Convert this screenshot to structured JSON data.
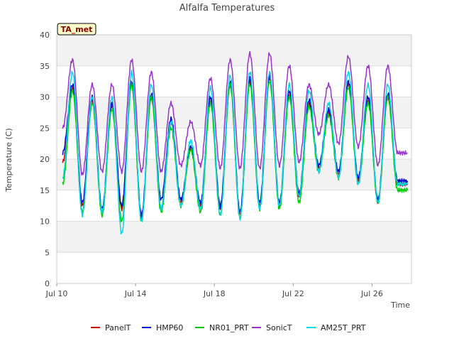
{
  "chart_data": {
    "type": "line",
    "title": "Alfalfa Temperatures",
    "xlabel": "Time",
    "ylabel": "Temperature (C)",
    "tag_label": "TA_met",
    "x_ticks": [
      "Jul 10",
      "Jul 14",
      "Jul 18",
      "Jul 22",
      "Jul 26"
    ],
    "x_tick_days": [
      10,
      14,
      18,
      22,
      26
    ],
    "xlim": [
      10,
      28
    ],
    "ylim": [
      0,
      40
    ],
    "y_ticks": [
      0,
      5,
      10,
      15,
      20,
      25,
      30,
      35,
      40
    ],
    "grid": "horizontal bands",
    "legend_position": "bottom",
    "day_x": [
      10.3,
      10.8,
      11.3,
      11.8,
      12.3,
      12.8,
      13.3,
      13.8,
      14.3,
      14.8,
      15.3,
      15.8,
      16.3,
      16.8,
      17.3,
      17.8,
      18.3,
      18.8,
      19.3,
      19.8,
      20.3,
      20.8,
      21.3,
      21.8,
      22.3,
      22.8,
      23.3,
      23.8,
      24.3,
      24.8,
      25.3,
      25.8,
      26.3,
      26.8,
      27.3,
      27.8
    ],
    "series": [
      {
        "name": "PanelT",
        "color": "#cc0000",
        "values": [
          19.5,
          31.5,
          12.5,
          29.5,
          11.5,
          28.5,
          12.0,
          32.0,
          10.5,
          30.0,
          12.0,
          26.0,
          13.0,
          21.5,
          12.5,
          29.5,
          12.0,
          32.0,
          11.0,
          32.5,
          12.5,
          33.0,
          12.5,
          30.5,
          14.0,
          29.0,
          18.5,
          27.5,
          17.5,
          32.0,
          16.5,
          29.5,
          13.0,
          30.0,
          16.0,
          16.0
        ]
      },
      {
        "name": "HMP60",
        "color": "#0000cc",
        "values": [
          21.0,
          32.0,
          13.0,
          30.0,
          12.0,
          29.0,
          12.5,
          32.5,
          11.0,
          30.5,
          13.5,
          26.5,
          13.5,
          22.0,
          13.0,
          30.0,
          12.5,
          32.5,
          11.5,
          33.0,
          13.0,
          33.5,
          13.0,
          31.0,
          14.5,
          29.5,
          19.0,
          28.0,
          18.0,
          32.5,
          17.0,
          30.0,
          13.5,
          30.5,
          16.5,
          16.5
        ]
      },
      {
        "name": "NR01_PRT",
        "color": "#00cc00",
        "values": [
          16.0,
          31.0,
          11.5,
          29.0,
          11.0,
          28.0,
          10.0,
          32.0,
          10.0,
          30.0,
          11.5,
          25.0,
          12.5,
          21.5,
          11.5,
          29.0,
          11.0,
          32.0,
          10.5,
          32.0,
          12.0,
          32.5,
          12.0,
          30.0,
          13.0,
          28.5,
          18.0,
          27.0,
          17.0,
          31.5,
          16.0,
          29.0,
          13.0,
          30.0,
          15.0,
          15.0
        ]
      },
      {
        "name": "SonicT",
        "color": "#9933cc",
        "values": [
          25.0,
          36.0,
          17.5,
          32.0,
          18.0,
          32.0,
          18.0,
          36.0,
          18.0,
          34.0,
          18.0,
          29.0,
          19.0,
          26.0,
          19.0,
          33.0,
          18.5,
          36.0,
          18.5,
          37.0,
          18.5,
          37.0,
          19.0,
          35.0,
          19.5,
          32.0,
          24.0,
          32.0,
          22.5,
          36.5,
          22.0,
          35.0,
          19.0,
          35.0,
          21.0,
          21.0
        ]
      },
      {
        "name": "AM25T_PRT",
        "color": "#00d8e8",
        "values": [
          17.0,
          34.0,
          11.0,
          30.0,
          11.5,
          30.0,
          8.0,
          34.0,
          10.0,
          32.0,
          12.0,
          26.0,
          12.5,
          23.0,
          12.0,
          31.5,
          11.0,
          33.5,
          10.5,
          34.0,
          12.0,
          34.0,
          12.5,
          32.0,
          14.0,
          31.0,
          18.0,
          29.0,
          17.0,
          34.0,
          16.0,
          32.0,
          13.0,
          32.0,
          16.0,
          16.0
        ]
      }
    ]
  }
}
